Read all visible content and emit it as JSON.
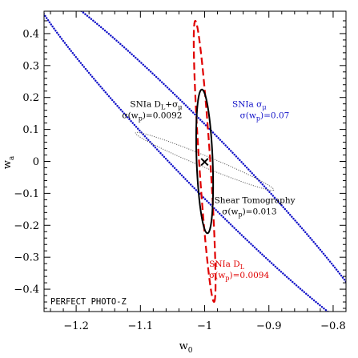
{
  "chart_data": {
    "type": "line",
    "xlabel": "w",
    "xlabel_sub": "0",
    "ylabel": "w",
    "ylabel_sub": "a",
    "xlim": [
      -1.25,
      -0.78
    ],
    "ylim": [
      -0.47,
      0.47
    ],
    "xticks": [
      -1.2,
      -1.1,
      -1.0,
      -0.9,
      -0.8
    ],
    "xtick_labels": [
      "−1.2",
      "−1.1",
      "−1",
      "−0.9",
      "−0.8"
    ],
    "yticks": [
      -0.4,
      -0.3,
      -0.2,
      -0.1,
      0,
      0.1,
      0.2,
      0.3,
      0.4
    ],
    "ytick_labels": [
      "−0.4",
      "−0.3",
      "−0.2",
      "−0.1",
      "0",
      "0.1",
      "0.2",
      "0.3",
      "0.4"
    ],
    "fiducial": {
      "x": -1.0,
      "y": 0.0,
      "marker": "×"
    },
    "colors": {
      "blue": "#1010c8",
      "red": "#e00000",
      "black": "#000000",
      "gray": "#555555"
    },
    "series": [
      {
        "name": "SNIa σμ",
        "style": "dotted",
        "color": "#1010c8",
        "shape": "ellipse",
        "center": [
          -1.0,
          0.0
        ],
        "semi_axes": [
          0.62,
          0.051
        ],
        "angle_deg": -64.5
      },
      {
        "name": "SNIa DL",
        "style": "dashed",
        "color": "#e00000",
        "shape": "ellipse",
        "center": [
          -1.0,
          0.0
        ],
        "semi_axes": [
          0.44,
          0.0087
        ],
        "angle_deg": -88.1
      },
      {
        "name": "Shear Tomography",
        "style": "dotted-thin",
        "color": "#555555",
        "shape": "ellipse",
        "center": [
          -1.0,
          0.0
        ],
        "semi_axes": [
          0.14,
          0.0145
        ],
        "angle_deg": -40
      },
      {
        "name": "SNIa DL+σμ",
        "style": "solid",
        "color": "#000000",
        "shape": "ellipse",
        "center": [
          -1.0,
          0.0
        ],
        "semi_axes": [
          0.225,
          0.0125
        ],
        "angle_deg": -88.9
      }
    ],
    "annotations": [
      {
        "id": "combo",
        "lines": [
          {
            "parts": [
              [
                "SNIa D",
                ""
              ],
              [
                "L",
                "sub"
              ],
              [
                "+σ",
                ""
              ],
              [
                "μ",
                "sub"
              ]
            ]
          },
          {
            "parts": [
              [
                "σ(w",
                ""
              ],
              [
                "p",
                "sub"
              ],
              [
                ")=0.0092",
                ""
              ]
            ]
          }
        ],
        "color": "#000000",
        "x": -1.035,
        "y": 0.17,
        "anchor": "end"
      },
      {
        "id": "sigma",
        "lines": [
          {
            "parts": [
              [
                "SNIa σ",
                ""
              ],
              [
                "μ",
                "sub"
              ]
            ]
          },
          {
            "parts": [
              [
                "σ(w",
                ""
              ],
              [
                "p",
                "sub"
              ],
              [
                ")=0.07",
                ""
              ]
            ]
          }
        ],
        "color": "#1010c8",
        "x": -0.957,
        "y": 0.17,
        "anchor": "start",
        "indent": 0.012
      },
      {
        "id": "shear",
        "lines": [
          {
            "parts": [
              [
                "Shear Tomography",
                ""
              ]
            ]
          },
          {
            "parts": [
              [
                "σ(w",
                ""
              ],
              [
                "p",
                "sub"
              ],
              [
                ")=0.013",
                ""
              ]
            ]
          }
        ],
        "color": "#000000",
        "x": -0.985,
        "y": -0.13,
        "anchor": "start",
        "indent": 0.012
      },
      {
        "id": "snia-dl",
        "lines": [
          {
            "parts": [
              [
                "SNIa D",
                ""
              ],
              [
                "L",
                "sub"
              ]
            ]
          },
          {
            "parts": [
              [
                "σ(w",
                ""
              ],
              [
                "p",
                "sub"
              ],
              [
                ")=0.0094",
                ""
              ]
            ]
          }
        ],
        "color": "#e00000",
        "x": -0.993,
        "y": -0.33,
        "anchor": "start",
        "indent": 0.0
      }
    ],
    "corner_label": "PERFECT PHOTO-Z"
  }
}
